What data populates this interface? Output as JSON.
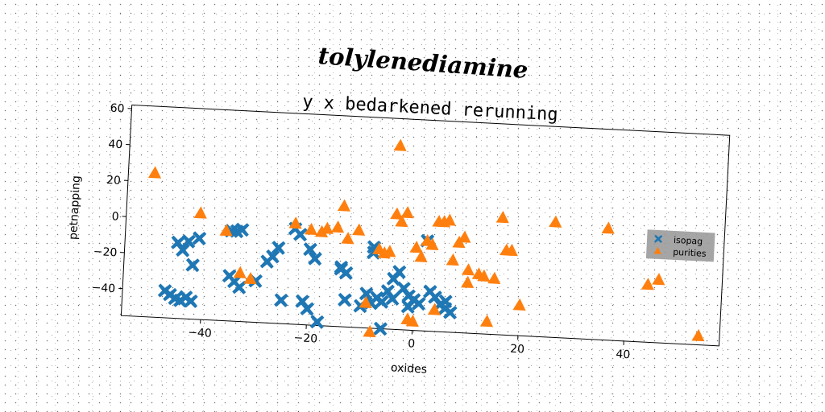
{
  "chart_data": {
    "type": "scatter",
    "suptitle": "tolylenediamine",
    "title": "y x bedarkened rerunning",
    "xlabel": "oxides",
    "ylabel": "petnapping",
    "xlim": [
      -55,
      58
    ],
    "ylim": [
      -55,
      62
    ],
    "xticks": [
      -40,
      -20,
      0,
      20,
      40
    ],
    "xtick_labels": [
      "−40",
      "−20",
      "0",
      "20",
      "40"
    ],
    "yticks": [
      -40,
      -20,
      0,
      20,
      40,
      60
    ],
    "ytick_labels": [
      "−40",
      "−20",
      "0",
      "20",
      "40",
      "60"
    ],
    "grid": false,
    "legend_position": "right",
    "series": [
      {
        "name": "isopag",
        "marker": "X",
        "color": "#1f77b4",
        "points": [
          [
            -45,
            -13
          ],
          [
            -44,
            -17
          ],
          [
            -43,
            -12
          ],
          [
            -42,
            -25
          ],
          [
            -41,
            -10
          ],
          [
            -47,
            -40
          ],
          [
            -46,
            -42
          ],
          [
            -45,
            -44
          ],
          [
            -44,
            -45
          ],
          [
            -43,
            -43
          ],
          [
            -42,
            -45
          ],
          [
            -35,
            -5
          ],
          [
            -34,
            -5
          ],
          [
            -33,
            -4
          ],
          [
            -35,
            -30
          ],
          [
            -34,
            -33
          ],
          [
            -33,
            -36
          ],
          [
            -30,
            -32
          ],
          [
            -28,
            -21
          ],
          [
            -27,
            -18
          ],
          [
            -26,
            -13
          ],
          [
            -25,
            -42
          ],
          [
            -23,
            -2
          ],
          [
            -22,
            -5
          ],
          [
            -21,
            -42
          ],
          [
            -20,
            -46
          ],
          [
            -19,
            -18
          ],
          [
            -18,
            -53
          ],
          [
            -14,
            -23
          ],
          [
            -13,
            -25
          ],
          [
            -13,
            -40
          ],
          [
            -10,
            -43
          ],
          [
            -9,
            -36
          ],
          [
            -8,
            -41
          ],
          [
            -8,
            -13
          ],
          [
            -7,
            -38
          ],
          [
            -6,
            -40
          ],
          [
            -5,
            -34
          ],
          [
            -4,
            -38
          ],
          [
            -6,
            -55
          ],
          [
            -4,
            -27
          ],
          [
            -3,
            -23
          ],
          [
            -2,
            -32
          ],
          [
            -1,
            -36
          ],
          [
            -1,
            -42
          ],
          [
            0,
            -38
          ],
          [
            1,
            -40
          ],
          [
            2,
            -5
          ],
          [
            3,
            -33
          ],
          [
            4,
            -36
          ],
          [
            5,
            -40
          ],
          [
            6,
            -38
          ],
          [
            6,
            -42
          ],
          [
            7,
            -44
          ],
          [
            -14,
            -22
          ],
          [
            -20,
            -13
          ],
          [
            -8,
            -10
          ]
        ]
      },
      {
        "name": "purities",
        "marker": "^",
        "color": "#ff7f0e",
        "points": [
          [
            -50,
            25
          ],
          [
            -41,
            4
          ],
          [
            -36,
            -5
          ],
          [
            -33,
            -28
          ],
          [
            -31,
            -31
          ],
          [
            -23,
            1
          ],
          [
            -20,
            -2
          ],
          [
            -18,
            -3
          ],
          [
            -17,
            -1
          ],
          [
            -15,
            0
          ],
          [
            -14,
            12
          ],
          [
            -13,
            -6
          ],
          [
            -11,
            -1
          ],
          [
            -9,
            -41
          ],
          [
            -8,
            -57
          ],
          [
            -7,
            -11
          ],
          [
            -6,
            -13
          ],
          [
            -5,
            -12
          ],
          [
            -4,
            47
          ],
          [
            -4,
            9
          ],
          [
            -3,
            5
          ],
          [
            -2,
            10
          ],
          [
            -1,
            -49
          ],
          [
            0,
            -50
          ],
          [
            0,
            -9
          ],
          [
            1,
            -14
          ],
          [
            2,
            -5
          ],
          [
            3,
            -7
          ],
          [
            4,
            -43
          ],
          [
            4,
            6
          ],
          [
            5,
            6
          ],
          [
            6,
            7
          ],
          [
            7,
            -15
          ],
          [
            8,
            -5
          ],
          [
            9,
            -2
          ],
          [
            10,
            -27
          ],
          [
            10,
            -20
          ],
          [
            12,
            -22
          ],
          [
            13,
            -23
          ],
          [
            14,
            -48
          ],
          [
            15,
            -24
          ],
          [
            16,
            10
          ],
          [
            17,
            -8
          ],
          [
            18,
            -8
          ],
          [
            20,
            -38
          ],
          [
            26,
            9
          ],
          [
            36,
            7
          ],
          [
            44,
            -23
          ],
          [
            46,
            -20
          ],
          [
            54,
            -50
          ]
        ]
      }
    ]
  }
}
